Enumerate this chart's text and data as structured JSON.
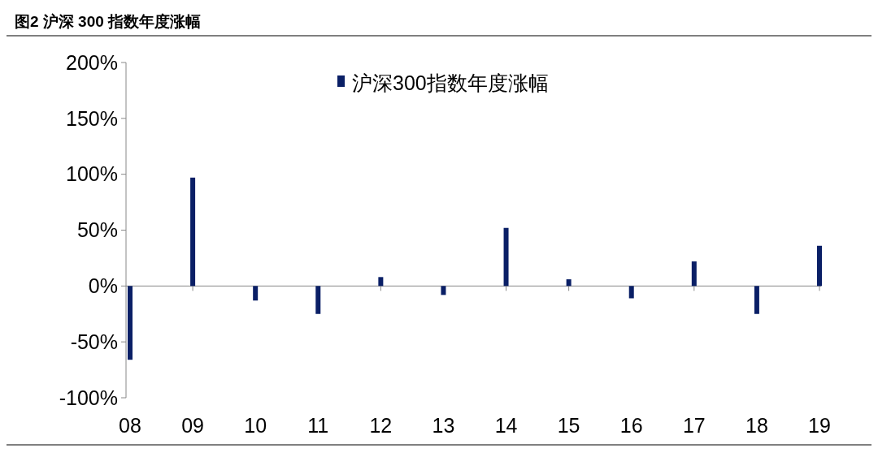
{
  "chart_data": {
    "type": "bar",
    "title": "图2  沪深 300 指数年度涨幅",
    "categories": [
      "08",
      "09",
      "10",
      "11",
      "12",
      "13",
      "14",
      "15",
      "16",
      "17",
      "18",
      "19"
    ],
    "series": [
      {
        "name": "沪深300指数年度涨幅",
        "color": "#0a1f66",
        "values": [
          -66,
          97,
          -13,
          -25,
          8,
          -8,
          52,
          6,
          -11,
          22,
          -25,
          36
        ]
      }
    ],
    "ylim": [
      -100,
      200
    ],
    "yticks": [
      {
        "value": -100,
        "label": "-100%"
      },
      {
        "value": -50,
        "label": "-50%"
      },
      {
        "value": 0,
        "label": "0%"
      },
      {
        "value": 50,
        "label": "50%"
      },
      {
        "value": 100,
        "label": "100%"
      },
      {
        "value": 150,
        "label": "150%"
      },
      {
        "value": 200,
        "label": "200%"
      }
    ],
    "legend": "top"
  }
}
